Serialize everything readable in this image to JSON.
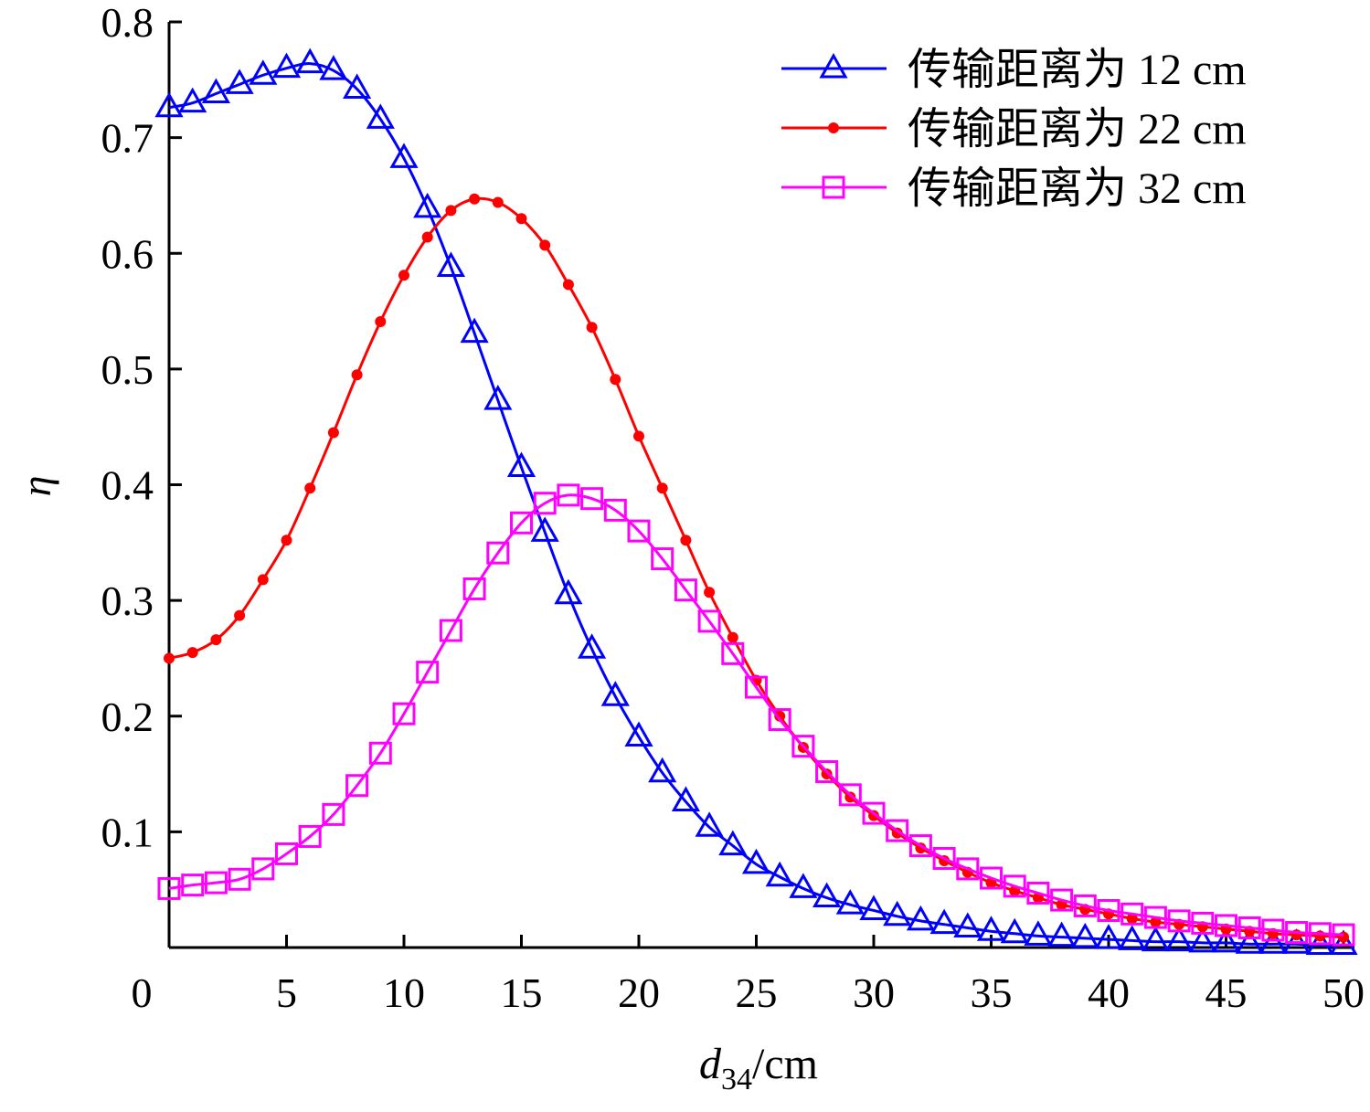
{
  "chart_data": {
    "type": "line",
    "title": "",
    "xlabel": "d34/cm",
    "xlabel_main": "d",
    "xlabel_sub": "34",
    "xlabel_unit": "/cm",
    "ylabel": "η",
    "xlim": [
      0,
      50
    ],
    "ylim": [
      0,
      0.8
    ],
    "xticks": [
      "0",
      "5",
      "10",
      "15",
      "20",
      "25",
      "30",
      "35",
      "40",
      "45",
      "50"
    ],
    "yticks": [
      "0.1",
      "0.2",
      "0.3",
      "0.4",
      "0.5",
      "0.6",
      "0.7",
      "0.8"
    ],
    "grid": false,
    "legend_position": "top-right",
    "x": [
      0,
      1,
      2,
      3,
      4,
      5,
      6,
      7,
      8,
      9,
      10,
      11,
      12,
      13,
      14,
      15,
      16,
      17,
      18,
      19,
      20,
      21,
      22,
      23,
      24,
      25,
      26,
      27,
      28,
      29,
      30,
      31,
      32,
      33,
      34,
      35,
      36,
      37,
      38,
      39,
      40,
      41,
      42,
      43,
      44,
      45,
      46,
      47,
      48,
      49,
      50
    ],
    "series": [
      {
        "name": "传输距离为 12 cm",
        "color": "#0000ff",
        "marker": "triangle-open",
        "values": [
          0.726,
          0.73,
          0.738,
          0.746,
          0.754,
          0.76,
          0.764,
          0.758,
          0.742,
          0.716,
          0.682,
          0.639,
          0.588,
          0.531,
          0.473,
          0.415,
          0.359,
          0.305,
          0.258,
          0.217,
          0.182,
          0.151,
          0.126,
          0.104,
          0.088,
          0.072,
          0.061,
          0.051,
          0.043,
          0.037,
          0.032,
          0.027,
          0.023,
          0.02,
          0.017,
          0.014,
          0.012,
          0.01,
          0.009,
          0.008,
          0.007,
          0.006,
          0.005,
          0.005,
          0.004,
          0.004,
          0.003,
          0.003,
          0.003,
          0.002,
          0.002
        ]
      },
      {
        "name": "传输距离为 22 cm",
        "color": "#ff0000",
        "marker": "dot",
        "values": [
          0.25,
          0.255,
          0.266,
          0.287,
          0.318,
          0.352,
          0.397,
          0.445,
          0.495,
          0.541,
          0.581,
          0.614,
          0.637,
          0.647,
          0.644,
          0.63,
          0.607,
          0.573,
          0.536,
          0.491,
          0.442,
          0.397,
          0.352,
          0.307,
          0.268,
          0.231,
          0.2,
          0.173,
          0.15,
          0.13,
          0.114,
          0.099,
          0.086,
          0.075,
          0.065,
          0.056,
          0.049,
          0.043,
          0.037,
          0.033,
          0.029,
          0.025,
          0.022,
          0.02,
          0.018,
          0.016,
          0.014,
          0.012,
          0.011,
          0.01,
          0.009
        ]
      },
      {
        "name": "传输距离为 32 cm",
        "color": "#ff00ff",
        "marker": "square-open",
        "values": [
          0.051,
          0.054,
          0.056,
          0.059,
          0.068,
          0.081,
          0.096,
          0.115,
          0.14,
          0.168,
          0.202,
          0.238,
          0.274,
          0.31,
          0.341,
          0.367,
          0.384,
          0.391,
          0.388,
          0.378,
          0.36,
          0.336,
          0.309,
          0.282,
          0.254,
          0.225,
          0.197,
          0.174,
          0.152,
          0.132,
          0.116,
          0.101,
          0.088,
          0.077,
          0.068,
          0.06,
          0.053,
          0.047,
          0.041,
          0.036,
          0.032,
          0.029,
          0.026,
          0.023,
          0.021,
          0.019,
          0.017,
          0.015,
          0.013,
          0.012,
          0.011
        ]
      }
    ]
  }
}
